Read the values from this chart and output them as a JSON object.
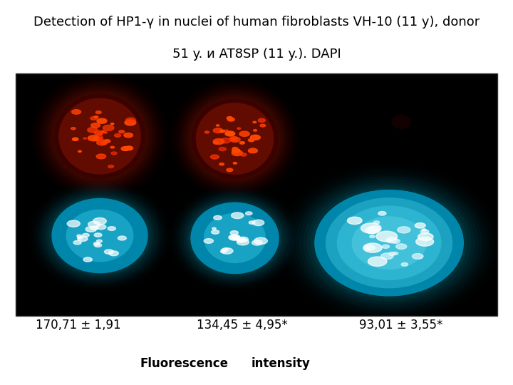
{
  "title_line1": "Detection of HP1-γ in nuclei of human fibroblasts VH-10 (11 y), donor",
  "title_line2": "51 y. и AT8SP (11 y.). DAPI",
  "title_fontsize": 13,
  "fig_bg": "#ffffff",
  "label1": "170,71 ± 1,91",
  "label2": "134,45 ± 4,95*",
  "label3": "93,01 ± 3,55*",
  "footer_left": "Fluorescence",
  "footer_right": "intensity",
  "label_fontsize": 12,
  "footer_fontsize": 12
}
